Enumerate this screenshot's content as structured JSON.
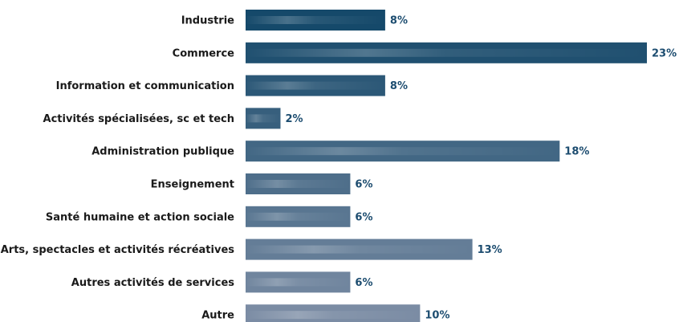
{
  "chart_data": {
    "type": "bar",
    "orientation": "horizontal",
    "categories": [
      "Industrie",
      "Commerce",
      "Information et communication",
      "Activités spécialisées, sc et tech",
      "Administration publique",
      "Enseignement",
      "Santé humaine et action sociale",
      "Arts, spectacles et activités récréatives",
      "Autres activités de services",
      "Autre"
    ],
    "values": [
      8,
      23,
      8,
      2,
      18,
      6,
      6,
      13,
      6,
      10
    ],
    "value_labels": [
      "8%",
      "23%",
      "8%",
      "2%",
      "18%",
      "6%",
      "6%",
      "13%",
      "6%",
      "10%"
    ],
    "xlim": [
      0,
      23
    ],
    "grid": false,
    "legend": "none"
  },
  "colors": {
    "bar_top": "#15496a",
    "bar_bottom": "#7b8ca4",
    "value_label": "#1d4d70",
    "category_label": "#1a1a1a"
  }
}
